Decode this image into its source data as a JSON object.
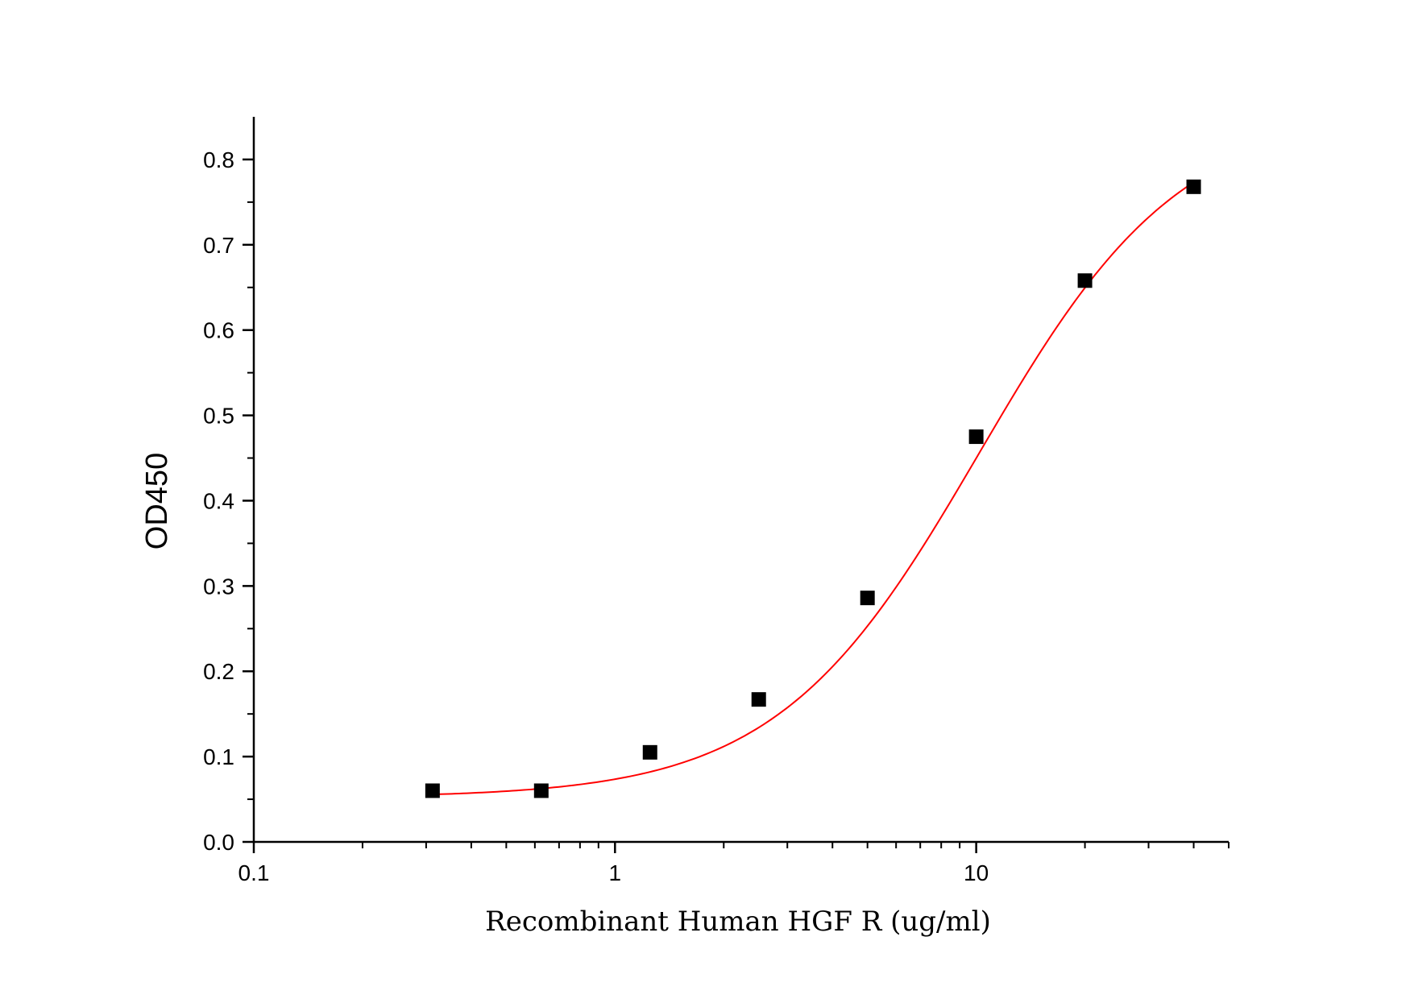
{
  "chart_data": {
    "type": "scatter",
    "xscale": "log",
    "xlim": [
      0.1,
      50
    ],
    "ylim": [
      0.0,
      0.85
    ],
    "xlabel": "Recombinant Human HGF R (ug/ml)",
    "ylabel": "OD450",
    "x_ticks": [
      "0.1",
      "1",
      "10"
    ],
    "y_ticks": [
      "0.0",
      "0.1",
      "0.2",
      "0.3",
      "0.4",
      "0.5",
      "0.6",
      "0.7",
      "0.8"
    ],
    "grid": false,
    "series": [
      {
        "marker": "square",
        "color": "#000000",
        "x": [
          0.3125,
          0.625,
          1.25,
          2.5,
          5,
          10,
          20,
          40
        ],
        "y": [
          0.06,
          0.06,
          0.105,
          0.167,
          0.286,
          0.475,
          0.658,
          0.768
        ]
      }
    ],
    "fit": {
      "color": "#ff0000",
      "model": "4PL",
      "bottom": 0.052,
      "top": 0.86,
      "ec50": 10.2,
      "hill": 1.55
    }
  }
}
